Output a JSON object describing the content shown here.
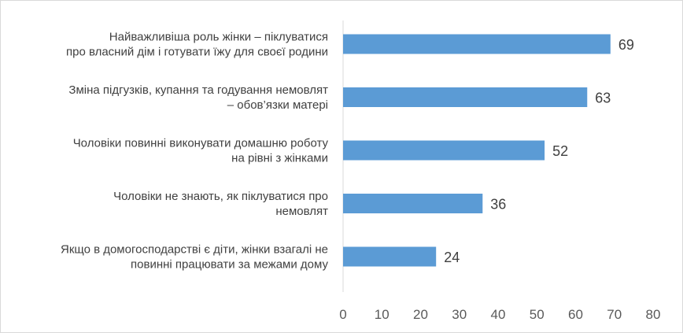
{
  "chart_data": {
    "type": "bar",
    "orientation": "horizontal",
    "title": "",
    "xlabel": "",
    "ylabel": "",
    "categories": [
      [
        "Найважливіша роль жінки – піклуватися",
        "про власний дім і готувати їжу для своєї родини"
      ],
      [
        "Зміна підгузків, купання та годування немовлят",
        "– обов’язки матері"
      ],
      [
        "Чоловіки повинні виконувати домашню роботу",
        "на рівні з жінками"
      ],
      [
        "Чоловіки не знають, як піклуватися про",
        "немовлят"
      ],
      [
        "Якщо в домогосподарстві є діти, жінки взагалі не",
        "повинні працювати за межами дому"
      ]
    ],
    "values": [
      69,
      63,
      52,
      36,
      24
    ],
    "xlim": [
      0,
      80
    ],
    "xticks": [
      0,
      10,
      20,
      30,
      40,
      50,
      60,
      70,
      80
    ],
    "grid": false,
    "legend": "none",
    "bar_color": "#5B9BD5",
    "axis_color": "#d9d9d9"
  }
}
